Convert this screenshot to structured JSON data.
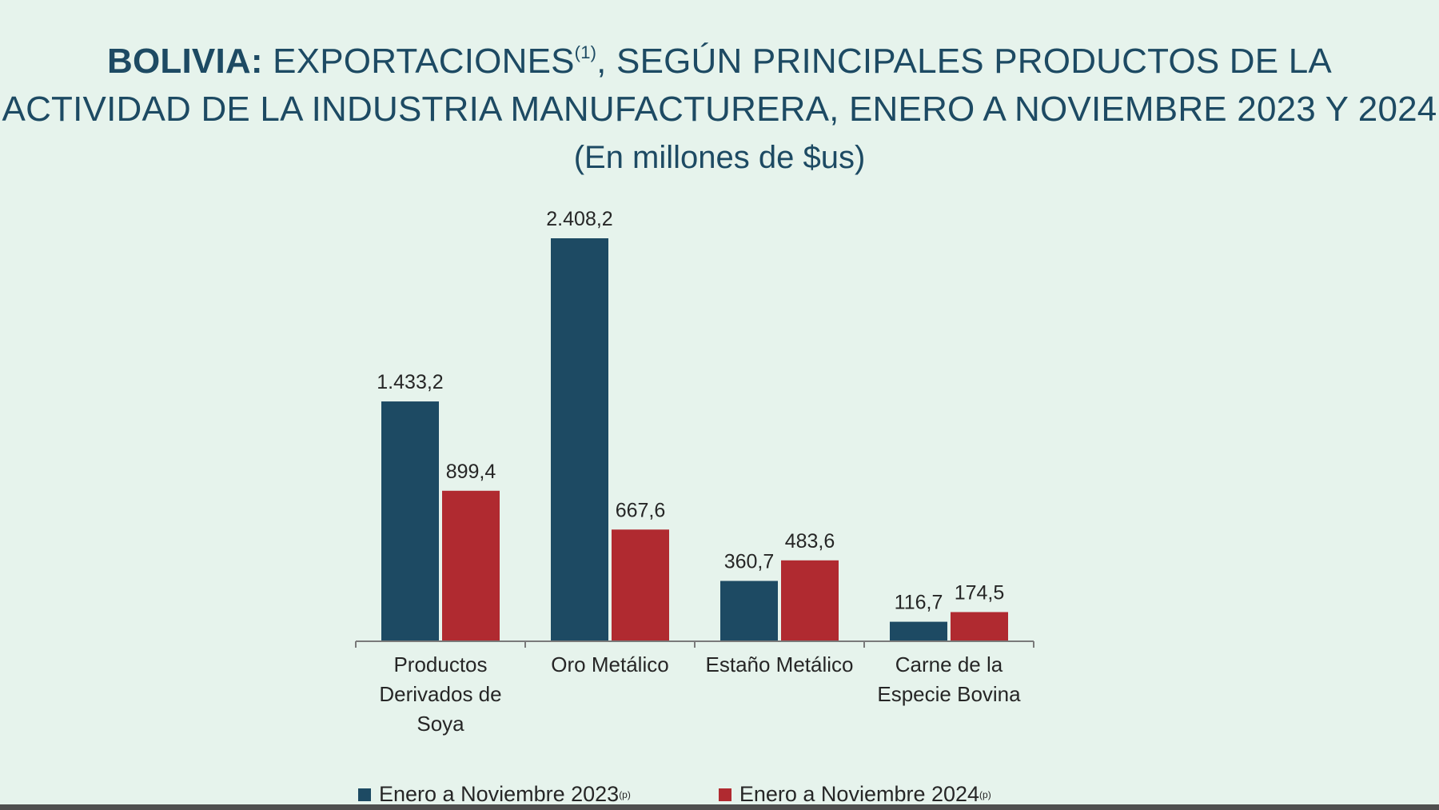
{
  "title": {
    "bold_part": "BOLIVIA:",
    "line1_rest": "EXPORTACIONES",
    "footnote_mark": "(1)",
    "line1_tail": ", SEGÚN PRINCIPALES PRODUCTOS DE LA",
    "line2": "ACTIVIDAD DE LA INDUSTRIA MANUFACTURERA, ENERO A NOVIEMBRE 2023 Y 2024",
    "subtitle": "(En millones de $us)"
  },
  "colors": {
    "series_2023": "#1d4a63",
    "series_2024": "#b02a30",
    "background": "#e6f3ec",
    "axis": "#7a7a7a"
  },
  "chart_data": {
    "type": "bar",
    "categories": [
      [
        "Productos",
        "Derivados de",
        "Soya"
      ],
      [
        "Oro Metálico"
      ],
      [
        "Estaño Metálico"
      ],
      [
        "Carne de la",
        "Especie Bovina"
      ]
    ],
    "series": [
      {
        "name": "Enero a Noviembre 2023",
        "footnote_mark": "(p)",
        "values": [
          1433.2,
          2408.2,
          360.7,
          116.7
        ],
        "value_labels": [
          "1.433,2",
          "2.408,2",
          "360,7",
          "116,7"
        ]
      },
      {
        "name": "Enero a Noviembre 2024",
        "footnote_mark": "(p)",
        "values": [
          899.4,
          667.6,
          483.6,
          174.5
        ],
        "value_labels": [
          "899,4",
          "667,6",
          "483,6",
          "174,5"
        ]
      }
    ],
    "ylim": [
      0,
      2408.2
    ],
    "grid": false,
    "legend_position": "bottom"
  }
}
